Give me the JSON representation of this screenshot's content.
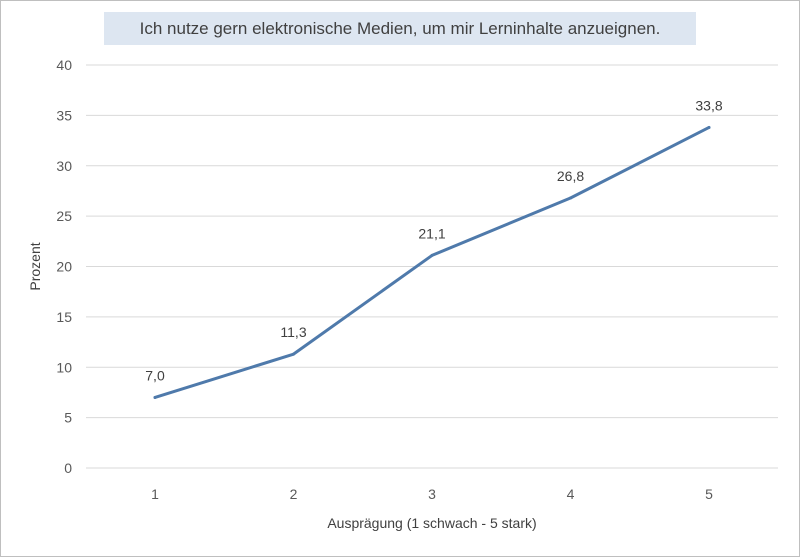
{
  "chart_data": {
    "type": "line",
    "title": "Ich nutze gern elektronische Medien, um mir Lerninhalte anzueignen.",
    "xlabel": "Ausprägung (1 schwach - 5 stark)",
    "ylabel": "Prozent",
    "categories": [
      "1",
      "2",
      "3",
      "4",
      "5"
    ],
    "values": [
      7.0,
      11.3,
      21.1,
      26.8,
      33.8
    ],
    "data_labels": [
      "7,0",
      "11,3",
      "21,1",
      "26,8",
      "33,8"
    ],
    "ylim": [
      0,
      40
    ],
    "yticks": [
      "0",
      "5",
      "10",
      "15",
      "20",
      "25",
      "30",
      "35",
      "40"
    ],
    "ytick_values": [
      0,
      5,
      10,
      15,
      20,
      25,
      30,
      35,
      40
    ],
    "grid": true,
    "legend": "none",
    "line_color": "#4f7aab",
    "grid_color": "#d9d9d9"
  }
}
